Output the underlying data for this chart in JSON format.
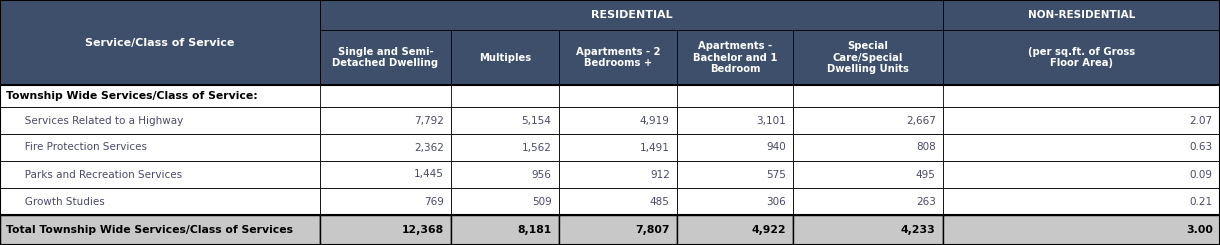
{
  "header_bg": "#3d4f6b",
  "header_text_color": "#ffffff",
  "total_bg": "#c8c8c8",
  "border_color": "#000000",
  "col1_header": "Service/Class of Service",
  "residential_label": "RESIDENTIAL",
  "non_residential_label": "NON-RESIDENTIAL",
  "col_headers": [
    "Single and Semi-\nDetached Dwelling",
    "Multiples",
    "Apartments - 2\nBedrooms +",
    "Apartments -\nBachelor and 1\nBedroom",
    "Special\nCare/Special\nDwelling Units",
    "(per sq.ft. of Gross\nFloor Area)"
  ],
  "section_label": "Township Wide Services/Class of Service:",
  "rows": [
    {
      "label": "   Services Related to a Highway",
      "values": [
        "7,792",
        "5,154",
        "4,919",
        "3,101",
        "2,667",
        "2.07"
      ]
    },
    {
      "label": "   Fire Protection Services",
      "values": [
        "2,362",
        "1,562",
        "1,491",
        "940",
        "808",
        "0.63"
      ]
    },
    {
      "label": "   Parks and Recreation Services",
      "values": [
        "1,445",
        "956",
        "912",
        "575",
        "495",
        "0.09"
      ]
    },
    {
      "label": "   Growth Studies",
      "values": [
        "769",
        "509",
        "485",
        "306",
        "263",
        "0.21"
      ]
    }
  ],
  "total_row": {
    "label": "Total Township Wide Services/Class of Services",
    "values": [
      "12,368",
      "8,181",
      "7,807",
      "4,922",
      "4,233",
      "3.00"
    ]
  },
  "col_bounds": [
    0.0,
    0.262,
    0.37,
    0.458,
    0.555,
    0.65,
    0.773,
    1.0
  ]
}
